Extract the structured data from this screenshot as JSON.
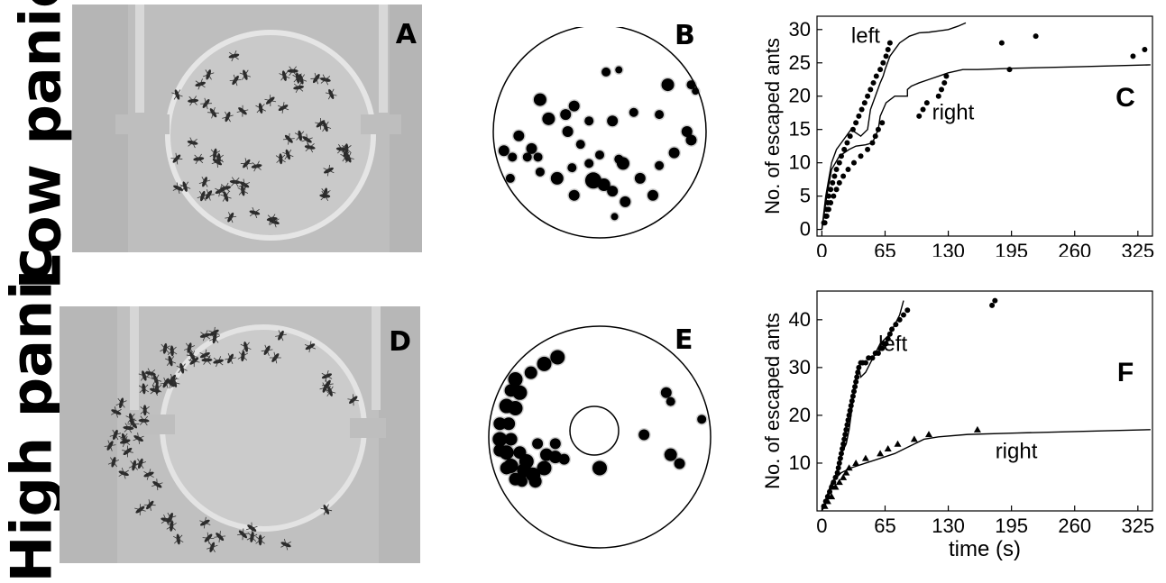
{
  "row_labels": {
    "top": "Low panic",
    "bottom": "High panic"
  },
  "panel_letters": {
    "a": "A",
    "b": "B",
    "c": "C",
    "d": "D",
    "e": "E",
    "f": "F"
  },
  "chart_data": [
    {
      "panel": "C",
      "type": "scatter",
      "xlabel": "",
      "ylabel": "No. of escaped ants",
      "xlim": [
        -5,
        340
      ],
      "ylim": [
        -1,
        32
      ],
      "xticks": [
        0,
        65,
        130,
        195,
        260,
        325
      ],
      "yticks": [
        0,
        5,
        10,
        15,
        20,
        25,
        30
      ],
      "annotations": [
        {
          "text": "left",
          "x": 45,
          "y": 28
        },
        {
          "text": "right",
          "x": 135,
          "y": 16.5
        }
      ],
      "series": [
        {
          "name": "left",
          "kind": "points",
          "x": [
            2,
            4,
            5,
            6,
            7,
            9,
            11,
            13,
            15,
            18,
            20,
            23,
            26,
            29,
            32,
            35,
            38,
            41,
            44,
            47,
            50,
            53,
            56,
            60,
            63,
            66,
            68,
            70
          ],
          "y": [
            1,
            2,
            3,
            4,
            5,
            6,
            7,
            8,
            9,
            10,
            11,
            12,
            13,
            14,
            15,
            16,
            17,
            18,
            19,
            20,
            21,
            22,
            23,
            24,
            25,
            26,
            27,
            28
          ]
        },
        {
          "name": "right",
          "kind": "points",
          "x": [
            3,
            5,
            7,
            9,
            12,
            15,
            18,
            22,
            27,
            33,
            40,
            47,
            52,
            55,
            58,
            62,
            100,
            104,
            108,
            120,
            123,
            126,
            128,
            185,
            193,
            220,
            320,
            332
          ],
          "y": [
            1,
            2,
            3,
            4,
            5,
            6,
            7,
            8,
            9,
            10,
            11,
            12,
            13,
            14,
            15,
            16,
            17,
            18,
            19,
            20,
            21,
            22,
            23,
            28,
            24,
            29,
            26,
            27
          ]
        },
        {
          "name": "left",
          "kind": "line",
          "x": [
            0,
            4,
            10,
            15,
            20,
            30,
            40,
            47,
            50,
            55,
            60,
            63,
            65,
            70,
            75,
            80,
            90,
            100,
            110,
            120,
            130,
            140,
            148
          ],
          "y": [
            0,
            5,
            10,
            12,
            13,
            15,
            14,
            15,
            18,
            20,
            22,
            23,
            24,
            26,
            27,
            28,
            29,
            29.5,
            29.6,
            29.8,
            30,
            30.5,
            31
          ]
        },
        {
          "name": "right",
          "kind": "line",
          "x": [
            0,
            5,
            10,
            18,
            28,
            35,
            45,
            52,
            55,
            58,
            60,
            63,
            66,
            75,
            85,
            88,
            88,
            92,
            100,
            110,
            120,
            130,
            145,
            160,
            200,
            260,
            338
          ],
          "y": [
            0,
            5,
            9,
            11,
            12,
            12.5,
            12.7,
            13,
            14,
            15,
            17,
            18,
            19,
            20,
            20,
            20,
            21,
            21.5,
            22,
            22.5,
            23,
            23.5,
            24,
            24,
            24.2,
            24.4,
            24.7
          ]
        }
      ]
    },
    {
      "panel": "F",
      "type": "scatter",
      "xlabel": "time (s)",
      "ylabel": "No. of escaped ants",
      "xlim": [
        -5,
        340
      ],
      "ylim": [
        0,
        46
      ],
      "xticks": [
        0,
        65,
        130,
        195,
        260,
        325
      ],
      "yticks": [
        10,
        20,
        30,
        40
      ],
      "annotations": [
        {
          "text": "left",
          "x": 73,
          "y": 33.5
        },
        {
          "text": "right",
          "x": 200,
          "y": 11
        }
      ],
      "series": [
        {
          "name": "left",
          "kind": "points",
          "x": [
            2,
            4,
            6,
            8,
            10,
            12,
            14,
            16,
            17,
            18,
            19,
            20,
            21,
            22,
            23,
            24,
            25,
            26,
            27,
            28,
            29,
            30,
            31,
            32,
            33,
            34,
            35,
            36,
            37,
            38,
            40,
            42,
            45,
            48,
            52,
            55,
            58,
            60,
            62,
            64,
            66,
            68,
            70,
            72,
            76,
            80,
            84,
            88,
            175,
            178
          ],
          "y": [
            1,
            2,
            3,
            4,
            5,
            6,
            7,
            8,
            9,
            10,
            11,
            12,
            13,
            14,
            15,
            16,
            17,
            18,
            19,
            20,
            21,
            22,
            23,
            24,
            25,
            26,
            27,
            28,
            29,
            30,
            31,
            31,
            31,
            32,
            32,
            33,
            33,
            34,
            34,
            35,
            35,
            36,
            37,
            38,
            39,
            40,
            41,
            42,
            43,
            44
          ]
        },
        {
          "name": "right",
          "kind": "points",
          "x": [
            3,
            6,
            10,
            14,
            18,
            22,
            25,
            28,
            35,
            45,
            60,
            68,
            78,
            95,
            110,
            160
          ],
          "y": [
            1,
            2,
            3,
            5,
            6,
            7,
            8,
            9,
            10,
            11,
            12,
            13,
            14,
            15,
            16,
            17
          ]
        },
        {
          "name": "left",
          "kind": "line",
          "x": [
            0,
            5,
            10,
            15,
            20,
            25,
            28,
            30,
            33,
            36,
            38,
            40,
            45,
            50,
            55,
            60,
            65,
            70,
            75,
            80,
            84
          ],
          "y": [
            0,
            2,
            5,
            8,
            12,
            14,
            17,
            20,
            25,
            29,
            30,
            28,
            29,
            31,
            33,
            35,
            36,
            37,
            39,
            41,
            44
          ]
        },
        {
          "name": "right",
          "kind": "line",
          "x": [
            0,
            5,
            10,
            20,
            30,
            45,
            60,
            75,
            85,
            95,
            105,
            120,
            150,
            200,
            260,
            338
          ],
          "y": [
            0,
            3,
            6,
            8,
            9,
            10,
            11,
            12,
            13,
            14,
            15,
            15.5,
            16,
            16.3,
            16.6,
            17
          ]
        }
      ]
    }
  ],
  "diagram_b": {
    "ants": [
      [
        0.22,
        0.35,
        7
      ],
      [
        0.53,
        0.22,
        5
      ],
      [
        0.59,
        0.21,
        4
      ],
      [
        0.82,
        0.28,
        7
      ],
      [
        0.78,
        0.42,
        5
      ],
      [
        0.59,
        0.63,
        5
      ],
      [
        0.61,
        0.65,
        7
      ],
      [
        0.38,
        0.38,
        6
      ],
      [
        0.34,
        0.42,
        6
      ],
      [
        0.26,
        0.44,
        7
      ],
      [
        0.45,
        0.45,
        5
      ],
      [
        0.35,
        0.5,
        6
      ],
      [
        0.56,
        0.45,
        6
      ],
      [
        0.66,
        0.41,
        5
      ],
      [
        0.41,
        0.56,
        5
      ],
      [
        0.5,
        0.61,
        5
      ],
      [
        0.45,
        0.65,
        5
      ],
      [
        0.47,
        0.73,
        9
      ],
      [
        0.52,
        0.75,
        7
      ],
      [
        0.56,
        0.78,
        6
      ],
      [
        0.62,
        0.83,
        6
      ],
      [
        0.3,
        0.72,
        7
      ],
      [
        0.38,
        0.8,
        6
      ],
      [
        0.37,
        0.67,
        5
      ],
      [
        0.22,
        0.69,
        5
      ],
      [
        0.18,
        0.58,
        6
      ],
      [
        0.21,
        0.62,
        5
      ],
      [
        0.08,
        0.72,
        5
      ],
      [
        0.05,
        0.59,
        6
      ],
      [
        0.12,
        0.52,
        6
      ],
      [
        0.09,
        0.62,
        5
      ],
      [
        0.16,
        0.62,
        5
      ],
      [
        0.69,
        0.72,
        6
      ],
      [
        0.75,
        0.8,
        6
      ],
      [
        0.78,
        0.66,
        5
      ],
      [
        0.85,
        0.6,
        6
      ],
      [
        0.93,
        0.54,
        6
      ],
      [
        0.91,
        0.5,
        6
      ],
      [
        0.95,
        0.31,
        4
      ],
      [
        0.93,
        0.28,
        5
      ],
      [
        0.57,
        0.9,
        4
      ]
    ]
  },
  "diagram_e": {
    "ants": [
      [
        0.19,
        0.21,
        7
      ],
      [
        0.25,
        0.17,
        8
      ],
      [
        0.31,
        0.14,
        8
      ],
      [
        0.12,
        0.24,
        8
      ],
      [
        0.1,
        0.29,
        7
      ],
      [
        0.14,
        0.3,
        8
      ],
      [
        0.08,
        0.36,
        8
      ],
      [
        0.12,
        0.37,
        8
      ],
      [
        0.05,
        0.44,
        7
      ],
      [
        0.09,
        0.44,
        7
      ],
      [
        0.05,
        0.51,
        8
      ],
      [
        0.1,
        0.51,
        7
      ],
      [
        0.08,
        0.57,
        8
      ],
      [
        0.05,
        0.56,
        7
      ],
      [
        0.14,
        0.57,
        7
      ],
      [
        0.17,
        0.61,
        8
      ],
      [
        0.1,
        0.63,
        8
      ],
      [
        0.16,
        0.65,
        8
      ],
      [
        0.2,
        0.67,
        8
      ],
      [
        0.12,
        0.69,
        7
      ],
      [
        0.08,
        0.64,
        7
      ],
      [
        0.25,
        0.64,
        8
      ],
      [
        0.3,
        0.59,
        7
      ],
      [
        0.26,
        0.58,
        7
      ],
      [
        0.22,
        0.53,
        6
      ],
      [
        0.3,
        0.53,
        6
      ],
      [
        0.34,
        0.6,
        6
      ],
      [
        0.5,
        0.64,
        8
      ],
      [
        0.7,
        0.49,
        6
      ],
      [
        0.8,
        0.3,
        6
      ],
      [
        0.82,
        0.34,
        5
      ],
      [
        0.82,
        0.58,
        7
      ],
      [
        0.86,
        0.62,
        6
      ],
      [
        0.21,
        0.7,
        7
      ],
      [
        0.15,
        0.7,
        6
      ],
      [
        0.96,
        0.42,
        5
      ]
    ]
  }
}
